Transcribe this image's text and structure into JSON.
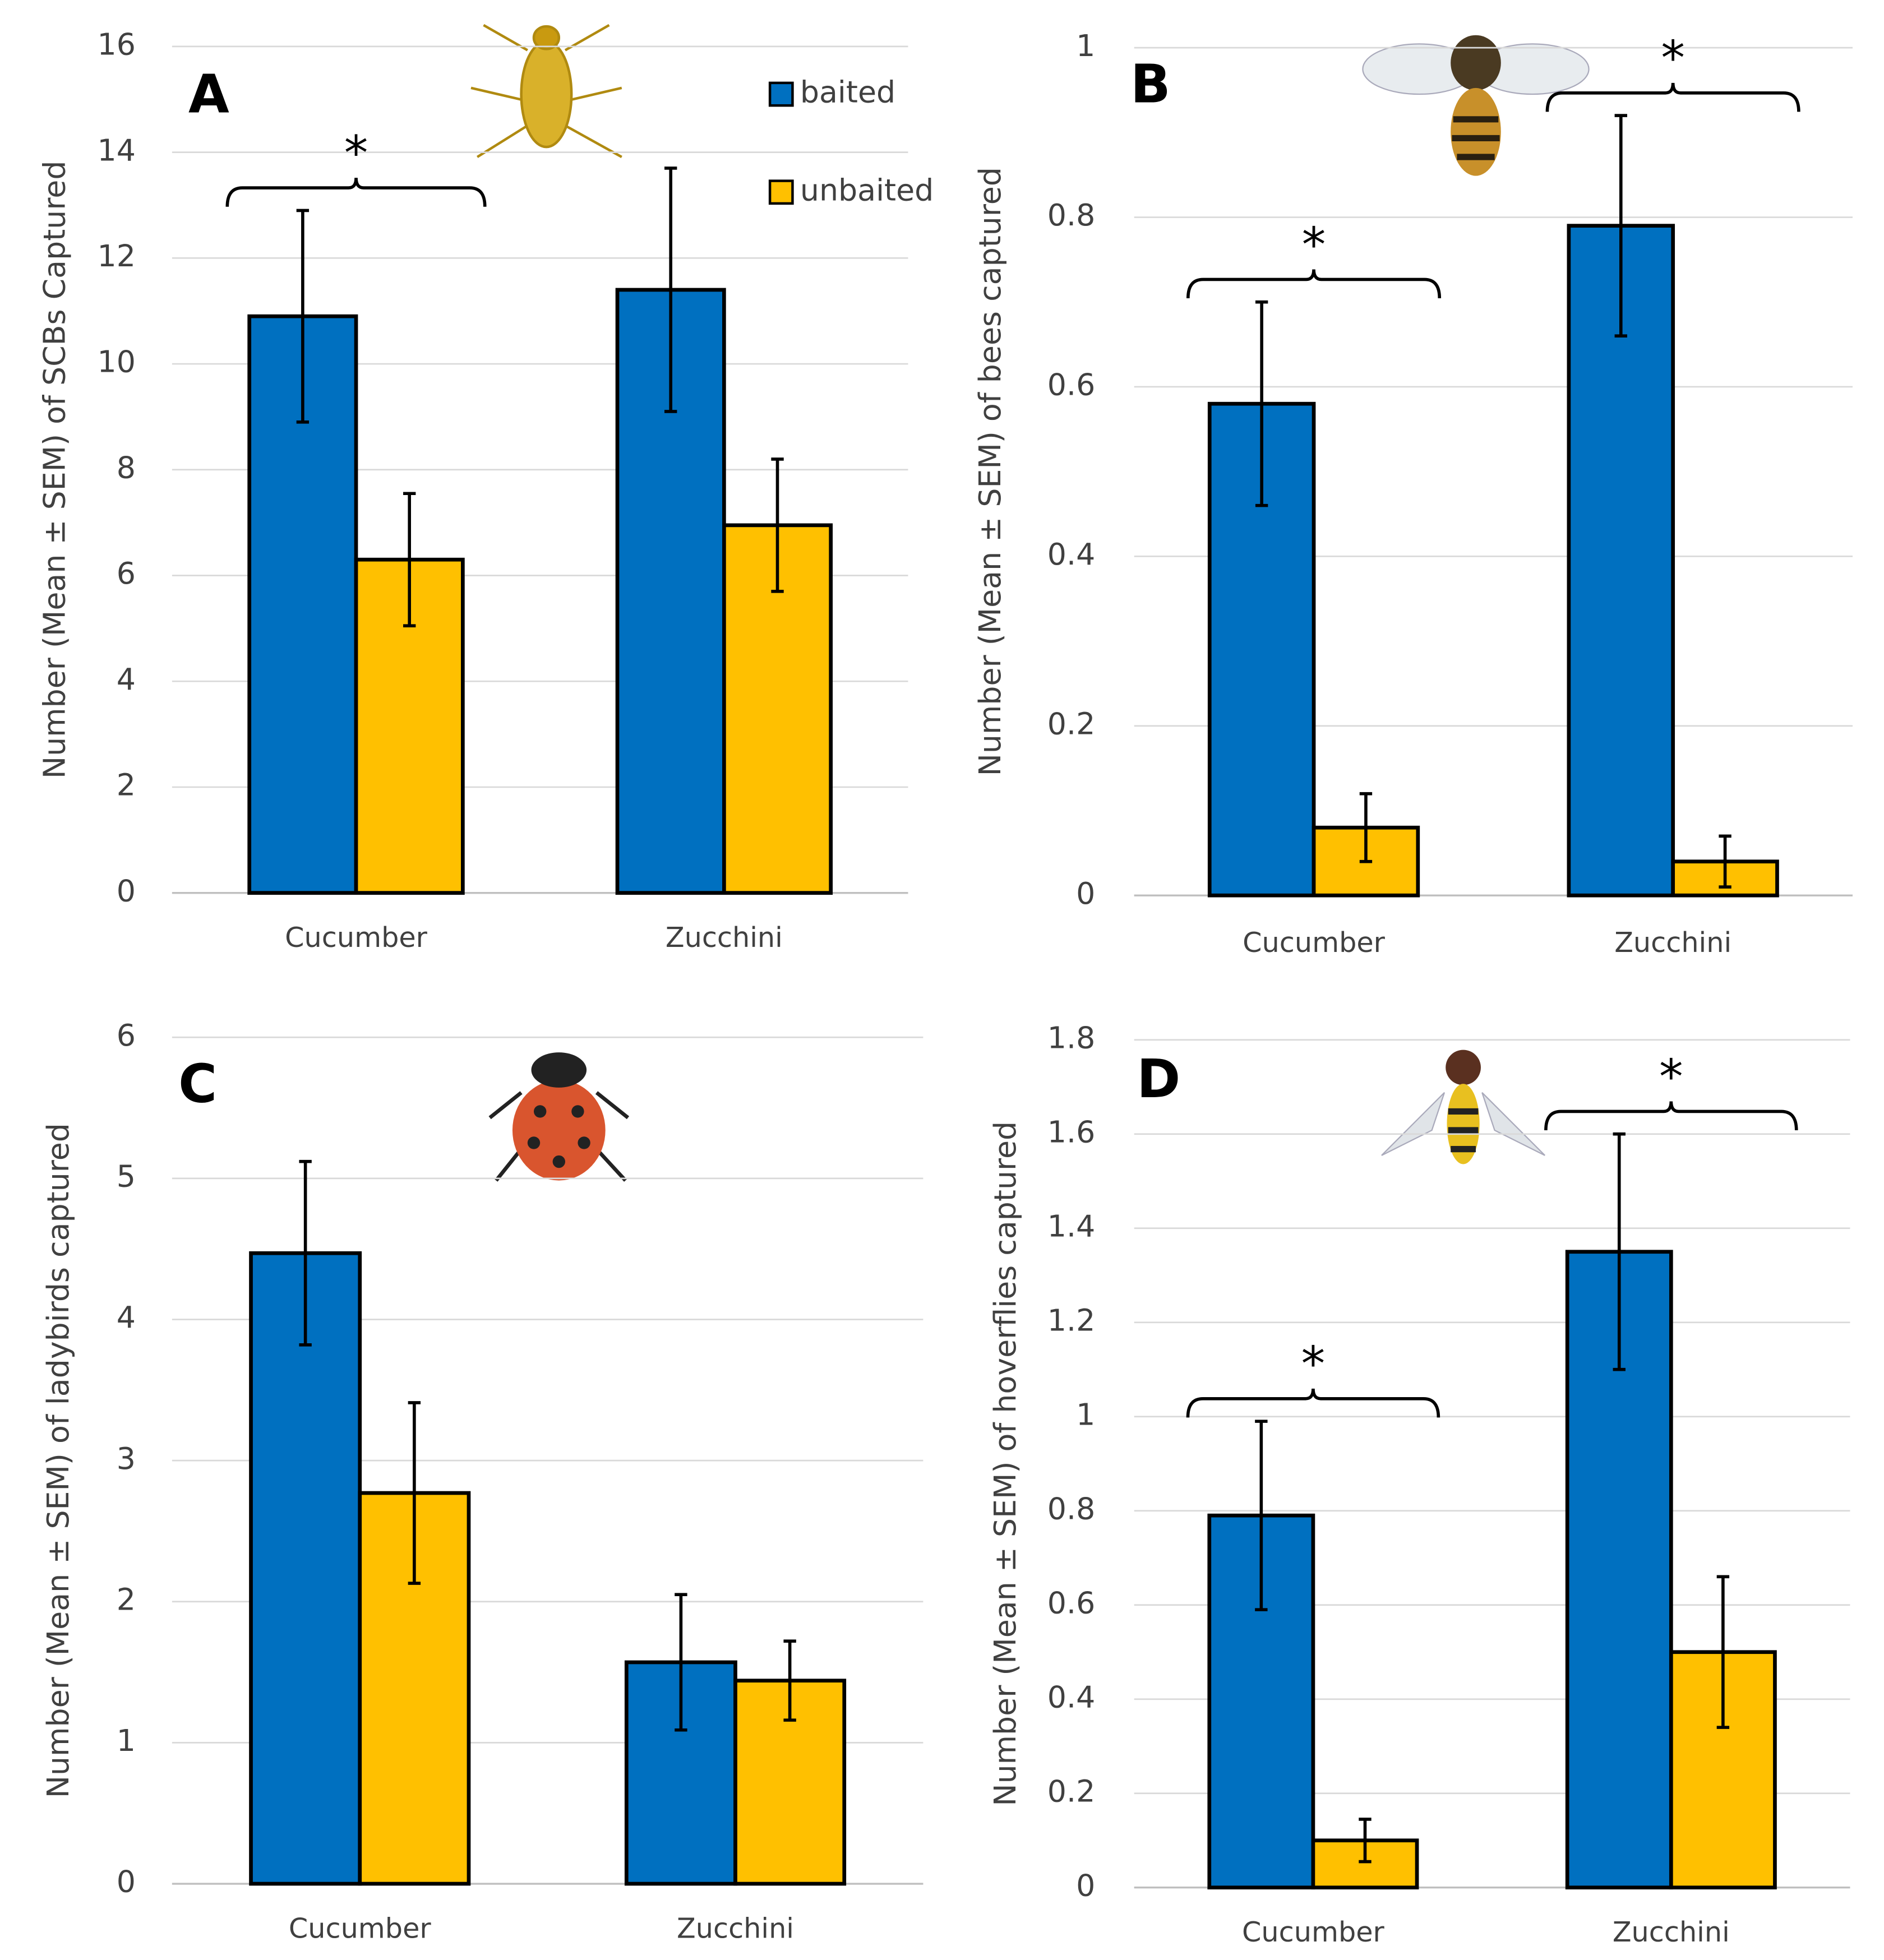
{
  "chart_data": [
    {
      "type": "bar",
      "panel_label": "A",
      "y_label": "Number (Mean ± SEM) of SCBs Captured",
      "categories": [
        "Cucumber",
        "Zucchini"
      ],
      "series": [
        {
          "name": "baited",
          "color": "#0070c0",
          "values": [
            10.9,
            11.4
          ],
          "errors": [
            2.0,
            2.3
          ]
        },
        {
          "name": "unbaited",
          "color": "#ffc000",
          "values": [
            6.3,
            6.95
          ],
          "errors": [
            1.25,
            1.25
          ]
        }
      ],
      "ylim": [
        0,
        16
      ],
      "yticks": [
        0,
        2,
        4,
        6,
        8,
        10,
        12,
        14,
        16
      ],
      "grid": true,
      "legend": "upper right",
      "annotations": [
        {
          "text": "*",
          "category": "Cucumber"
        }
      ]
    },
    {
      "type": "bar",
      "panel_label": "B",
      "y_label": "Number (Mean ± SEM) of bees captured",
      "categories": [
        "Cucumber",
        "Zucchini"
      ],
      "series": [
        {
          "color": "#0070c0",
          "values": [
            0.58,
            0.79
          ],
          "errors": [
            0.12,
            0.13
          ]
        },
        {
          "color": "#ffc000",
          "values": [
            0.08,
            0.04
          ],
          "errors": [
            0.04,
            0.03
          ]
        }
      ],
      "ylim": [
        0,
        1
      ],
      "yticks": [
        0,
        0.2,
        0.4,
        0.6,
        0.8,
        1
      ],
      "grid": true,
      "annotations": [
        {
          "text": "*",
          "category": "Cucumber"
        },
        {
          "text": "*",
          "category": "Zucchini"
        }
      ]
    },
    {
      "type": "bar",
      "panel_label": "C",
      "y_label": "Number (Mean ± SEM) of ladybirds captured",
      "categories": [
        "Cucumber",
        "Zucchini"
      ],
      "series": [
        {
          "color": "#0070c0",
          "values": [
            4.47,
            1.57
          ],
          "errors": [
            0.65,
            0.48
          ]
        },
        {
          "color": "#ffc000",
          "values": [
            2.77,
            1.44
          ],
          "errors": [
            0.64,
            0.28
          ]
        }
      ],
      "ylim": [
        0,
        6
      ],
      "yticks": [
        0,
        1,
        2,
        3,
        4,
        5,
        6
      ],
      "grid": true
    },
    {
      "type": "bar",
      "panel_label": "D",
      "y_label": "Number (Mean ± SEM) of hoverflies captured",
      "categories": [
        "Cucumber",
        "Zucchini"
      ],
      "series": [
        {
          "color": "#0070c0",
          "values": [
            0.79,
            1.35
          ],
          "errors": [
            0.2,
            0.25
          ]
        },
        {
          "color": "#ffc000",
          "values": [
            0.1,
            0.5
          ],
          "errors": [
            0.045,
            0.16
          ]
        }
      ],
      "ylim": [
        0,
        1.8
      ],
      "yticks": [
        0,
        0.2,
        0.4,
        0.6,
        0.8,
        1,
        1.2,
        1.4,
        1.6,
        1.8
      ],
      "grid": true,
      "annotations": [
        {
          "text": "*",
          "category": "Cucumber"
        },
        {
          "text": "*",
          "category": "Zucchini"
        }
      ]
    }
  ]
}
